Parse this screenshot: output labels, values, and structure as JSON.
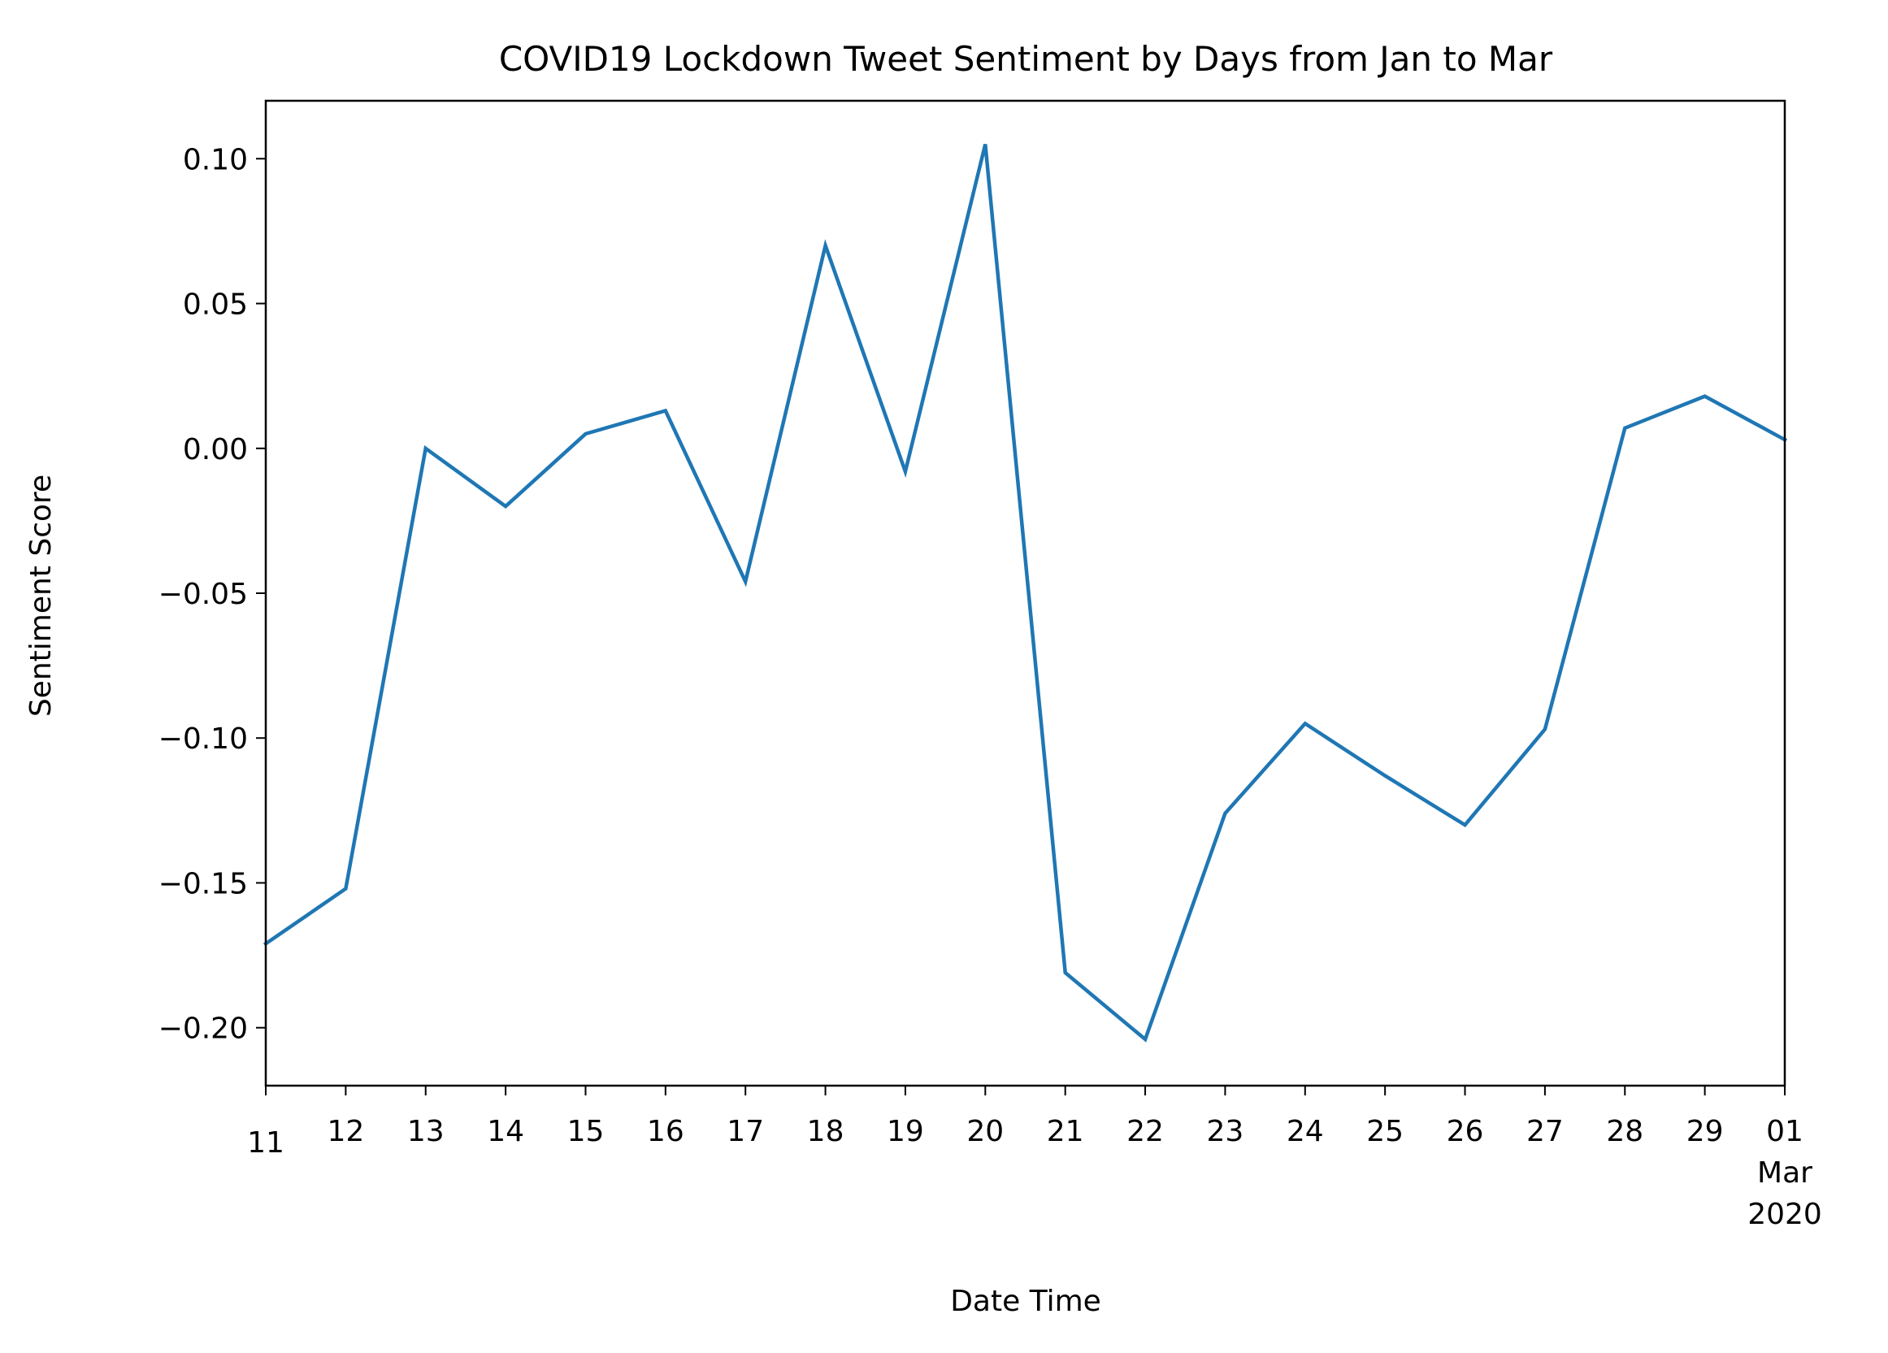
{
  "chart_data": {
    "type": "line",
    "title": "COVID19 Lockdown Tweet Sentiment by Days from Jan to Mar",
    "xlabel": "Date Time",
    "ylabel": "Sentiment Score",
    "x": [
      "2020-02-11",
      "2020-02-12",
      "2020-02-13",
      "2020-02-14",
      "2020-02-15",
      "2020-02-16",
      "2020-02-17",
      "2020-02-18",
      "2020-02-19",
      "2020-02-20",
      "2020-02-21",
      "2020-02-22",
      "2020-02-23",
      "2020-02-24",
      "2020-02-25",
      "2020-02-26",
      "2020-02-27",
      "2020-02-28",
      "2020-02-29",
      "2020-03-01"
    ],
    "x_tick_labels": [
      {
        "label": "11"
      },
      {
        "label": "12"
      },
      {
        "label": "13"
      },
      {
        "label": "14"
      },
      {
        "label": "15"
      },
      {
        "label": "16"
      },
      {
        "label": "17"
      },
      {
        "label": "18"
      },
      {
        "label": "19"
      },
      {
        "label": "20"
      },
      {
        "label": "21"
      },
      {
        "label": "22"
      },
      {
        "label": "23"
      },
      {
        "label": "24"
      },
      {
        "label": "25"
      },
      {
        "label": "26"
      },
      {
        "label": "27"
      },
      {
        "label": "28"
      },
      {
        "label": "29"
      },
      {
        "label": "01",
        "sub": [
          "Mar",
          "2020"
        ]
      }
    ],
    "y_ticks": [
      0.1,
      0.05,
      0.0,
      -0.05,
      -0.1,
      -0.15,
      -0.2
    ],
    "y_tick_labels": [
      "0.10",
      "0.05",
      "0.00",
      "−0.05",
      "−0.10",
      "−0.15",
      "−0.20"
    ],
    "ylim": [
      -0.22,
      0.12
    ],
    "series": [
      {
        "color": "#1f77b4",
        "values": [
          -0.171,
          -0.152,
          0.0,
          -0.02,
          0.005,
          0.013,
          -0.046,
          0.07,
          -0.008,
          0.105,
          -0.181,
          -0.204,
          -0.126,
          -0.095,
          -0.113,
          -0.13,
          -0.097,
          0.007,
          0.018,
          0.003
        ]
      }
    ],
    "grid": false,
    "legend": "none"
  }
}
